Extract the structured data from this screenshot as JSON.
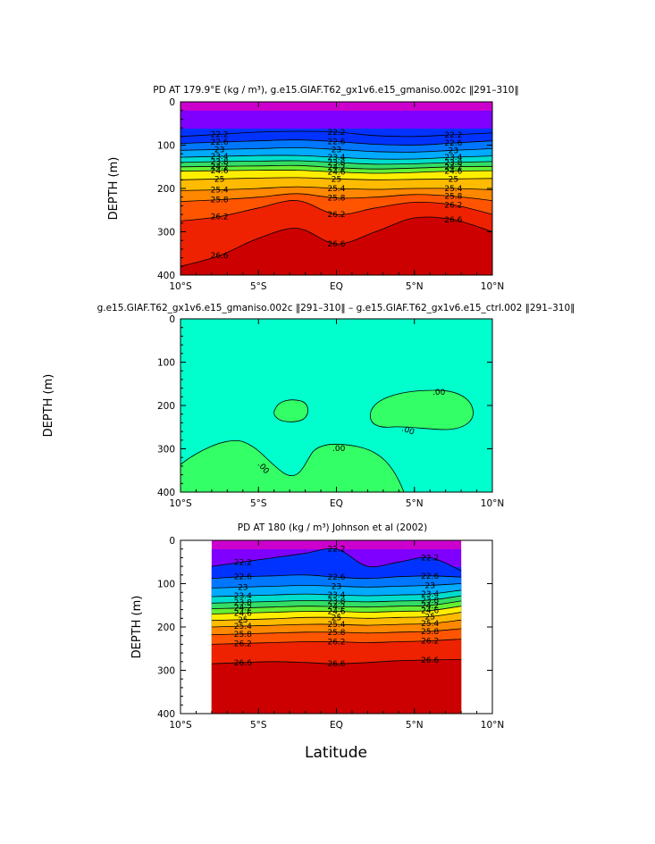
{
  "figure": {
    "xlabel": "Latitude"
  },
  "chart_data": [
    {
      "type": "contour",
      "title": "PD AT 179.9°E (kg / m³), g.e15.GIAF.T62_gx1v6.e15_gmaniso.002c ‖291–310‖",
      "ylabel": "DEPTH (m)",
      "xlim": [
        -10,
        10
      ],
      "ylim": [
        0,
        400
      ],
      "y_inverted": true,
      "x_ticks": [
        "10°S",
        "5°S",
        "EQ",
        "5°N",
        "10°N"
      ],
      "y_ticks": [
        "0",
        "100",
        "200",
        "300",
        "400"
      ],
      "contour_labels": [
        "22.2",
        "22.6",
        "23",
        "23.4",
        "23.8",
        "24.2",
        "24.6",
        "25",
        "25.4",
        "25.8",
        "26.2",
        "26.6"
      ],
      "fill_colors": [
        "#cc00cc",
        "#7f00ff",
        "#0033ff",
        "#0077ff",
        "#00aaff",
        "#00ddcc",
        "#33dd66",
        "#66ee33",
        "#ffee00",
        "#ffbb00",
        "#ff8800",
        "#ff5500",
        "#ee2200",
        "#cc0000"
      ],
      "isopycnals": [
        {
          "level": 22.2,
          "depths": [
            80,
            75,
            70,
            68,
            70,
            78,
            80,
            76,
            72
          ]
        },
        {
          "level": 22.6,
          "depths": [
            96,
            93,
            90,
            88,
            92,
            98,
            100,
            95,
            90
          ]
        },
        {
          "level": 23.0,
          "depths": [
            112,
            110,
            108,
            106,
            110,
            115,
            116,
            112,
            108
          ]
        },
        {
          "level": 23.4,
          "depths": [
            128,
            126,
            124,
            124,
            128,
            132,
            132,
            128,
            125
          ]
        },
        {
          "level": 23.8,
          "depths": [
            140,
            138,
            137,
            136,
            140,
            144,
            143,
            140,
            138
          ]
        },
        {
          "level": 24.2,
          "depths": [
            150,
            149,
            148,
            147,
            152,
            155,
            153,
            150,
            149
          ]
        },
        {
          "level": 24.6,
          "depths": [
            160,
            159,
            158,
            158,
            162,
            165,
            163,
            160,
            159
          ]
        },
        {
          "level": 25.0,
          "depths": [
            180,
            178,
            176,
            175,
            178,
            180,
            179,
            178,
            177
          ]
        },
        {
          "level": 25.4,
          "depths": [
            205,
            203,
            200,
            196,
            200,
            202,
            200,
            200,
            203
          ]
        },
        {
          "level": 25.8,
          "depths": [
            230,
            226,
            220,
            212,
            222,
            220,
            214,
            218,
            228
          ]
        },
        {
          "level": 26.2,
          "depths": [
            275,
            265,
            245,
            228,
            260,
            245,
            232,
            238,
            260
          ]
        },
        {
          "level": 26.6,
          "depths": [
            380,
            355,
            315,
            292,
            328,
            300,
            268,
            272,
            300
          ]
        }
      ]
    },
    {
      "type": "contour",
      "title": "g.e15.GIAF.T62_gx1v6.e15_gmaniso.002c ‖291–310‖ – g.e15.GIAF.T62_gx1v6.e15_ctrl.002 ‖291–310‖",
      "ylabel": "DEPTH (m)",
      "xlim": [
        -10,
        10
      ],
      "ylim": [
        0,
        400
      ],
      "y_inverted": true,
      "x_ticks": [
        "10°S",
        "5°S",
        "EQ",
        "5°N",
        "10°N"
      ],
      "y_ticks": [
        "0",
        "100",
        "200",
        "300",
        "400"
      ],
      "contour_labels": [
        ".00",
        ".00",
        ".00",
        ".00"
      ],
      "background_color": "#00ffcc",
      "positive_color": "#33ff66"
    },
    {
      "type": "contour",
      "title": "PD AT 180 (kg / m³) Johnson et al (2002)",
      "ylabel": "DEPTH (m)",
      "xlim": [
        -10,
        10
      ],
      "ylim": [
        0,
        400
      ],
      "data_xrange": [
        -8,
        8
      ],
      "y_inverted": true,
      "x_ticks": [
        "10°S",
        "5°S",
        "EQ",
        "5°N",
        "10°N"
      ],
      "y_ticks": [
        "0",
        "100",
        "200",
        "300",
        "400"
      ],
      "contour_labels": [
        "22.2",
        "22.6",
        "23",
        "23.4",
        "23.8",
        "24.2",
        "24.6",
        "25",
        "25.4",
        "25.8",
        "26.2",
        "26.6"
      ],
      "isopycnals": [
        {
          "level": 22.2,
          "depths": [
            60,
            50,
            40,
            30,
            20,
            60,
            50,
            40,
            70
          ]
        },
        {
          "level": 22.6,
          "depths": [
            88,
            84,
            82,
            80,
            85,
            88,
            84,
            82,
            85
          ]
        },
        {
          "level": 23.0,
          "depths": [
            110,
            108,
            106,
            104,
            106,
            108,
            106,
            104,
            100
          ]
        },
        {
          "level": 23.4,
          "depths": [
            130,
            128,
            126,
            124,
            126,
            128,
            126,
            124,
            115
          ]
        },
        {
          "level": 23.8,
          "depths": [
            145,
            143,
            141,
            139,
            140,
            142,
            140,
            138,
            128
          ]
        },
        {
          "level": 24.2,
          "depths": [
            158,
            156,
            154,
            152,
            153,
            154,
            152,
            150,
            140
          ]
        },
        {
          "level": 24.6,
          "depths": [
            170,
            168,
            166,
            164,
            164,
            166,
            164,
            162,
            152
          ]
        },
        {
          "level": 25.0,
          "depths": [
            185,
            183,
            181,
            178,
            178,
            180,
            178,
            176,
            166
          ]
        },
        {
          "level": 25.4,
          "depths": [
            200,
            198,
            196,
            194,
            194,
            196,
            194,
            192,
            184
          ]
        },
        {
          "level": 25.8,
          "depths": [
            218,
            216,
            214,
            212,
            212,
            214,
            212,
            210,
            204
          ]
        },
        {
          "level": 26.2,
          "depths": [
            240,
            238,
            236,
            234,
            234,
            236,
            234,
            232,
            228
          ]
        },
        {
          "level": 26.6,
          "depths": [
            285,
            282,
            280,
            282,
            285,
            282,
            278,
            276,
            275
          ]
        }
      ]
    }
  ]
}
